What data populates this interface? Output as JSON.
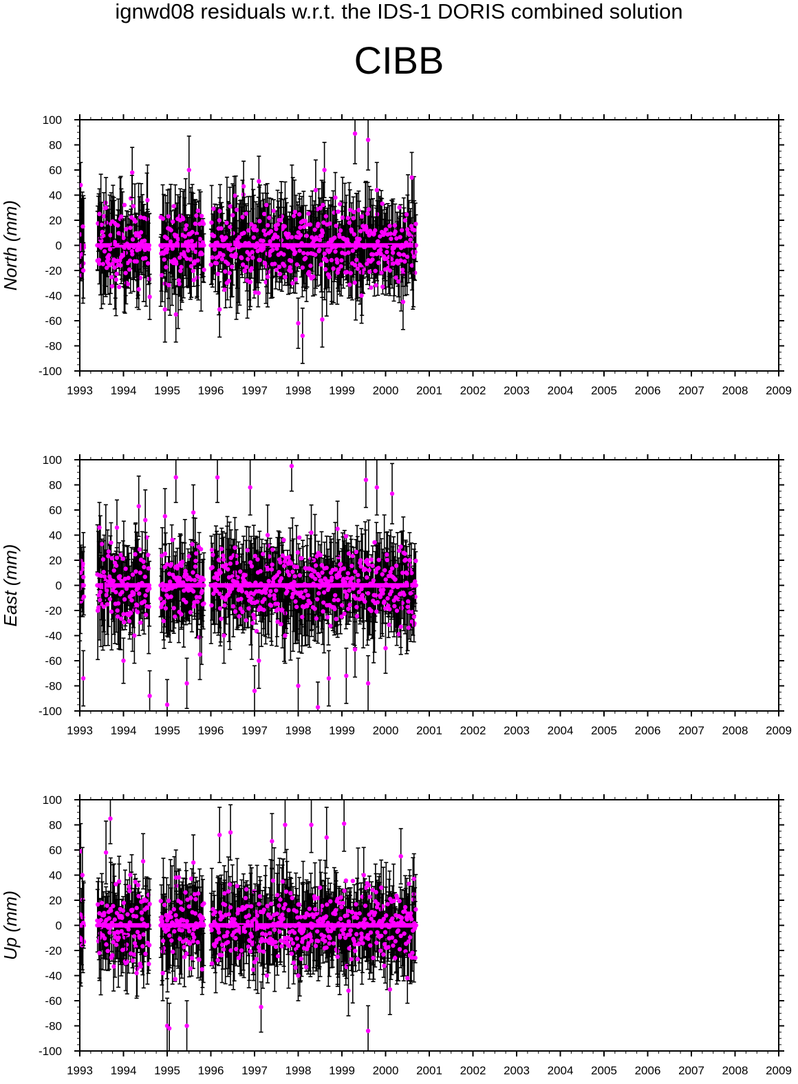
{
  "title": "ignwd08 residuals w.r.t. the IDS-1 DORIS combined solution",
  "station": "CIBB",
  "colors": {
    "point": "#ff00ff",
    "errorbar": "#000000",
    "axis": "#000000"
  },
  "chart_data": [
    {
      "type": "scatter",
      "component": "north",
      "ylabel": "North (mm)",
      "xlim": [
        1993,
        2009
      ],
      "ylim": [
        -100,
        100
      ],
      "xticks": [
        "1993",
        "1994",
        "1995",
        "1996",
        "1997",
        "1998",
        "1999",
        "2000",
        "2001",
        "2002",
        "2003",
        "2004",
        "2005",
        "2006",
        "2007",
        "2008",
        "2009"
      ],
      "yticks": [
        "100",
        "80",
        "60",
        "40",
        "20",
        "0",
        "-20",
        "-40",
        "-60",
        "-80",
        "-100"
      ],
      "data_spans": [
        [
          1993.0,
          1993.1
        ],
        [
          1993.4,
          1994.6
        ],
        [
          1994.85,
          1995.85
        ],
        [
          1996.0,
          2000.7
        ]
      ],
      "points": [
        {
          "x": 1993.02,
          "y": 48,
          "e": 18
        },
        {
          "x": 1993.05,
          "y": -7,
          "e": 20
        },
        {
          "x": 1993.08,
          "y": -20,
          "e": 22
        },
        {
          "x": 1993.45,
          "y": 25,
          "e": 20
        },
        {
          "x": 1993.6,
          "y": 30,
          "e": 24
        },
        {
          "x": 1993.75,
          "y": 19,
          "e": 20
        },
        {
          "x": 1993.95,
          "y": 23,
          "e": 22
        },
        {
          "x": 1994.05,
          "y": -22,
          "e": 18
        },
        {
          "x": 1994.2,
          "y": 58,
          "e": 20
        },
        {
          "x": 1994.35,
          "y": -35,
          "e": 16
        },
        {
          "x": 1994.55,
          "y": 36,
          "e": 28
        },
        {
          "x": 1994.6,
          "y": -41,
          "e": 18
        },
        {
          "x": 1994.95,
          "y": -51,
          "e": 26
        },
        {
          "x": 1995.2,
          "y": -55,
          "e": 22
        },
        {
          "x": 1995.3,
          "y": 20,
          "e": 25
        },
        {
          "x": 1995.5,
          "y": 60,
          "e": 27
        },
        {
          "x": 1995.7,
          "y": -12,
          "e": 20
        },
        {
          "x": 1996.2,
          "y": -51,
          "e": 22
        },
        {
          "x": 1996.5,
          "y": 24,
          "e": 25
        },
        {
          "x": 1996.75,
          "y": 47,
          "e": 20
        },
        {
          "x": 1997.1,
          "y": 51,
          "e": 20
        },
        {
          "x": 1997.3,
          "y": -25,
          "e": 24
        },
        {
          "x": 1997.6,
          "y": 20,
          "e": 22
        },
        {
          "x": 1998.0,
          "y": -62,
          "e": 20
        },
        {
          "x": 1998.1,
          "y": -72,
          "e": 22
        },
        {
          "x": 1998.4,
          "y": 44,
          "e": 24
        },
        {
          "x": 1998.55,
          "y": -59,
          "e": 22
        },
        {
          "x": 1998.6,
          "y": 60,
          "e": 22
        },
        {
          "x": 1998.85,
          "y": 38,
          "e": 20
        },
        {
          "x": 1999.3,
          "y": 89,
          "e": 24
        },
        {
          "x": 1999.45,
          "y": -40,
          "e": 22
        },
        {
          "x": 1999.6,
          "y": 84,
          "e": 24
        },
        {
          "x": 1999.8,
          "y": 44,
          "e": 22
        },
        {
          "x": 2000.1,
          "y": -20,
          "e": 20
        },
        {
          "x": 2000.4,
          "y": -45,
          "e": 22
        },
        {
          "x": 2000.6,
          "y": 54,
          "e": 20
        },
        {
          "x": 2000.65,
          "y": -9,
          "e": 18
        }
      ]
    },
    {
      "type": "scatter",
      "component": "east",
      "ylabel": "East (mm)",
      "xlim": [
        1993,
        2009
      ],
      "ylim": [
        -100,
        100
      ],
      "xticks": [
        "1993",
        "1994",
        "1995",
        "1996",
        "1997",
        "1998",
        "1999",
        "2000",
        "2001",
        "2002",
        "2003",
        "2004",
        "2005",
        "2006",
        "2007",
        "2008",
        "2009"
      ],
      "yticks": [
        "100",
        "80",
        "60",
        "40",
        "20",
        "0",
        "-20",
        "-40",
        "-60",
        "-80",
        "-100"
      ],
      "data_spans": [
        [
          1993.0,
          1993.1
        ],
        [
          1993.4,
          1994.6
        ],
        [
          1994.85,
          1995.85
        ],
        [
          1996.0,
          2000.7
        ]
      ],
      "points": [
        {
          "x": 1993.02,
          "y": 10,
          "e": 22
        },
        {
          "x": 1993.08,
          "y": -74,
          "e": 22
        },
        {
          "x": 1993.45,
          "y": 46,
          "e": 20
        },
        {
          "x": 1993.55,
          "y": -17,
          "e": 20
        },
        {
          "x": 1993.85,
          "y": 46,
          "e": 22
        },
        {
          "x": 1994.0,
          "y": -60,
          "e": 18
        },
        {
          "x": 1994.25,
          "y": -40,
          "e": 22
        },
        {
          "x": 1994.35,
          "y": 63,
          "e": 24
        },
        {
          "x": 1994.5,
          "y": 52,
          "e": 24
        },
        {
          "x": 1994.6,
          "y": -88,
          "e": 20
        },
        {
          "x": 1994.95,
          "y": 55,
          "e": 22
        },
        {
          "x": 1995.0,
          "y": -95,
          "e": 20
        },
        {
          "x": 1995.2,
          "y": 86,
          "e": 20
        },
        {
          "x": 1995.45,
          "y": -78,
          "e": 20
        },
        {
          "x": 1995.6,
          "y": 58,
          "e": 22
        },
        {
          "x": 1995.75,
          "y": -55,
          "e": 20
        },
        {
          "x": 1996.15,
          "y": 86,
          "e": 20
        },
        {
          "x": 1996.3,
          "y": -40,
          "e": 22
        },
        {
          "x": 1996.55,
          "y": 30,
          "e": 24
        },
        {
          "x": 1996.9,
          "y": 78,
          "e": 22
        },
        {
          "x": 1997.0,
          "y": -84,
          "e": 20
        },
        {
          "x": 1997.1,
          "y": -60,
          "e": 22
        },
        {
          "x": 1997.3,
          "y": 40,
          "e": 24
        },
        {
          "x": 1997.7,
          "y": -40,
          "e": 22
        },
        {
          "x": 1997.85,
          "y": 95,
          "e": 20
        },
        {
          "x": 1998.0,
          "y": -80,
          "e": 22
        },
        {
          "x": 1998.3,
          "y": 42,
          "e": 22
        },
        {
          "x": 1998.45,
          "y": -97,
          "e": 20
        },
        {
          "x": 1998.7,
          "y": -74,
          "e": 22
        },
        {
          "x": 1998.9,
          "y": 45,
          "e": 22
        },
        {
          "x": 1999.1,
          "y": -72,
          "e": 22
        },
        {
          "x": 1999.3,
          "y": -51,
          "e": 22
        },
        {
          "x": 1999.55,
          "y": 84,
          "e": 22
        },
        {
          "x": 1999.6,
          "y": -78,
          "e": 22
        },
        {
          "x": 1999.8,
          "y": 78,
          "e": 22
        },
        {
          "x": 2000.0,
          "y": -50,
          "e": 20
        },
        {
          "x": 2000.15,
          "y": 73,
          "e": 24
        },
        {
          "x": 2000.35,
          "y": -33,
          "e": 22
        },
        {
          "x": 2000.55,
          "y": 20,
          "e": 22
        },
        {
          "x": 2000.65,
          "y": -25,
          "e": 20
        }
      ]
    },
    {
      "type": "scatter",
      "component": "up",
      "ylabel": "Up (mm)",
      "xlim": [
        1993,
        2009
      ],
      "ylim": [
        -100,
        100
      ],
      "xticks": [
        "1993",
        "1994",
        "1995",
        "1996",
        "1997",
        "1998",
        "1999",
        "2000",
        "2001",
        "2002",
        "2003",
        "2004",
        "2005",
        "2006",
        "2007",
        "2008",
        "2009"
      ],
      "yticks": [
        "100",
        "80",
        "60",
        "40",
        "20",
        "0",
        "-20",
        "-40",
        "-60",
        "-80",
        "-100"
      ],
      "data_spans": [
        [
          1993.0,
          1993.1
        ],
        [
          1993.4,
          1994.6
        ],
        [
          1994.85,
          1995.85
        ],
        [
          1996.0,
          2000.7
        ]
      ],
      "points": [
        {
          "x": 1993.02,
          "y": 59,
          "e": 22
        },
        {
          "x": 1993.06,
          "y": 40,
          "e": 22
        },
        {
          "x": 1993.08,
          "y": 2,
          "e": 18
        },
        {
          "x": 1993.45,
          "y": -22,
          "e": 20
        },
        {
          "x": 1993.6,
          "y": 58,
          "e": 25
        },
        {
          "x": 1993.7,
          "y": 85,
          "e": 20
        },
        {
          "x": 1993.9,
          "y": 35,
          "e": 20
        },
        {
          "x": 1994.05,
          "y": -30,
          "e": 22
        },
        {
          "x": 1994.3,
          "y": -38,
          "e": 20
        },
        {
          "x": 1994.45,
          "y": 51,
          "e": 22
        },
        {
          "x": 1994.6,
          "y": 17,
          "e": 20
        },
        {
          "x": 1994.9,
          "y": -38,
          "e": 22
        },
        {
          "x": 1995.0,
          "y": -80,
          "e": 22
        },
        {
          "x": 1995.05,
          "y": -82,
          "e": 20
        },
        {
          "x": 1995.2,
          "y": 38,
          "e": 22
        },
        {
          "x": 1995.45,
          "y": -80,
          "e": 20
        },
        {
          "x": 1995.6,
          "y": 50,
          "e": 22
        },
        {
          "x": 1995.8,
          "y": -35,
          "e": 20
        },
        {
          "x": 1996.2,
          "y": 72,
          "e": 22
        },
        {
          "x": 1996.45,
          "y": 74,
          "e": 22
        },
        {
          "x": 1996.7,
          "y": -20,
          "e": 20
        },
        {
          "x": 1997.0,
          "y": 5,
          "e": 22
        },
        {
          "x": 1997.15,
          "y": -65,
          "e": 20
        },
        {
          "x": 1997.4,
          "y": 67,
          "e": 22
        },
        {
          "x": 1997.7,
          "y": 80,
          "e": 22
        },
        {
          "x": 1998.0,
          "y": -40,
          "e": 20
        },
        {
          "x": 1998.3,
          "y": 80,
          "e": 22
        },
        {
          "x": 1998.5,
          "y": 30,
          "e": 22
        },
        {
          "x": 1998.65,
          "y": 70,
          "e": 24
        },
        {
          "x": 1998.9,
          "y": -25,
          "e": 22
        },
        {
          "x": 1999.05,
          "y": 81,
          "e": 22
        },
        {
          "x": 1999.15,
          "y": -52,
          "e": 20
        },
        {
          "x": 1999.5,
          "y": 40,
          "e": 22
        },
        {
          "x": 1999.6,
          "y": -84,
          "e": 20
        },
        {
          "x": 1999.9,
          "y": 30,
          "e": 22
        },
        {
          "x": 2000.1,
          "y": -51,
          "e": 20
        },
        {
          "x": 2000.35,
          "y": 55,
          "e": 22
        },
        {
          "x": 2000.5,
          "y": -42,
          "e": 20
        },
        {
          "x": 2000.65,
          "y": 37,
          "e": 20
        }
      ]
    }
  ]
}
